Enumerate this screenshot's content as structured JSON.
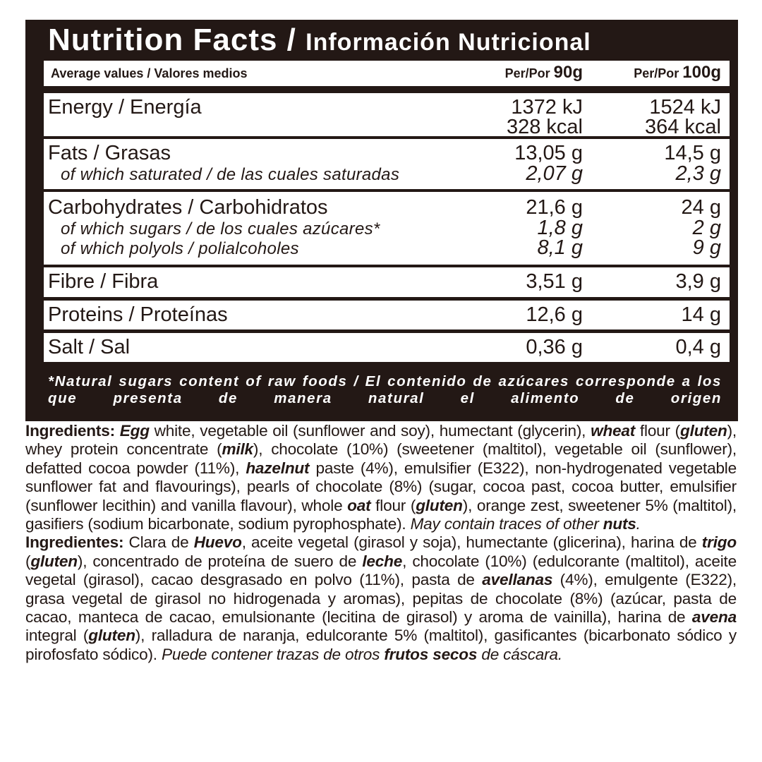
{
  "title": {
    "en": "Nutrition Facts",
    "sep": " / ",
    "es": "Información Nutricional"
  },
  "header": {
    "label": "Average values / Valores medios",
    "col1_prefix": "Per/Por ",
    "col1_amount": "90g",
    "col2_prefix": "Per/Por ",
    "col2_amount": "100g"
  },
  "rows": [
    {
      "label": "Energy / Energía",
      "v1": "1372 kJ",
      "v2": "1524 kJ",
      "v1b": "328 kcal",
      "v2b": "364 kcal"
    },
    {
      "label": "Fats / Grasas",
      "v1": "13,05 g",
      "v2": "14,5 g",
      "sub": [
        {
          "label": "of which saturated / de las cuales saturadas",
          "v1": "2,07 g",
          "v2": "2,3 g"
        }
      ]
    },
    {
      "label": "Carbohydrates / Carbohidratos",
      "v1": "21,6 g",
      "v2": "24 g",
      "sub": [
        {
          "label": "of which sugars / de los cuales azúcares*",
          "v1": "1,8 g",
          "v2": "2 g"
        },
        {
          "label": "of which polyols / polialcoholes",
          "v1": "8,1 g",
          "v2": "9 g"
        }
      ]
    },
    {
      "label": "Fibre / Fibra",
      "v1": "3,51 g",
      "v2": "3,9 g"
    },
    {
      "label": "Proteins / Proteínas",
      "v1": "12,6 g",
      "v2": "14 g"
    },
    {
      "label": "Salt / Sal",
      "v1": "0,36 g",
      "v2": "0,4 g"
    }
  ],
  "footnote": "*Natural sugars content of raw foods / El contenido de azúcares corresponde a los que presenta de manera natural el alimento de origen",
  "ingredients_en": [
    [
      "b",
      "Ingredients: "
    ],
    [
      "bi",
      "Egg"
    ],
    [
      "n",
      " white, vegetable oil (sunflower and soy), humectant (glycerin), "
    ],
    [
      "bi",
      "wheat"
    ],
    [
      "n",
      " flour ("
    ],
    [
      "bi",
      "gluten"
    ],
    [
      "n",
      "), whey protein concentrate ("
    ],
    [
      "bi",
      "milk"
    ],
    [
      "n",
      "), chocolate (10%) (sweetener (maltitol), vegetable oil (sunflower), defatted cocoa powder (11%), "
    ],
    [
      "bi",
      "hazelnut"
    ],
    [
      "n",
      " paste (4%), emulsifier (E322), non-hydrogenated vegetable sunflower fat and flavourings), pearls of chocolate (8%) (sugar, cocoa past, cocoa butter, emulsifier (sunflower lecithin) and vanilla flavour), whole "
    ],
    [
      "bi",
      "oat"
    ],
    [
      "n",
      " flour ("
    ],
    [
      "bi",
      "gluten"
    ],
    [
      "n",
      "), orange zest, sweetener 5% (maltitol), gasifiers (sodium bicarbonate, sodium pyrophosphate). "
    ],
    [
      "i",
      "May contain traces of other "
    ],
    [
      "bi",
      "nuts"
    ],
    [
      "i",
      "."
    ]
  ],
  "ingredients_es": [
    [
      "b",
      "Ingredientes: "
    ],
    [
      "n",
      "Clara de "
    ],
    [
      "bi",
      "Huevo"
    ],
    [
      "n",
      ", aceite vegetal (girasol y soja), humectante (glicerina), harina de "
    ],
    [
      "bi",
      "trigo"
    ],
    [
      "n",
      " ("
    ],
    [
      "bi",
      "gluten"
    ],
    [
      "n",
      "), concentrado de proteína de suero de "
    ],
    [
      "bi",
      "leche"
    ],
    [
      "n",
      ", chocolate (10%) (edulcorante (maltitol), aceite vegetal (girasol), cacao desgrasado en polvo (11%), pasta de "
    ],
    [
      "bi",
      "avellanas"
    ],
    [
      "n",
      " (4%), emulgente (E322), grasa vegetal de girasol no hidrogenada y aromas), pepitas de chocolate (8%) (azúcar, pasta de cacao, manteca de cacao, emulsionante (lecitina de girasol) y aroma de vainilla), harina de "
    ],
    [
      "bi",
      "avena"
    ],
    [
      "n",
      " integral ("
    ],
    [
      "bi",
      "gluten"
    ],
    [
      "n",
      "), ralladura de naranja, edulcorante 5% (maltitol), gasificantes (bicarbonato sódico y pirofosfato sódico). "
    ],
    [
      "i",
      "Puede contener trazas de otros "
    ],
    [
      "bi",
      "frutos secos"
    ],
    [
      "i",
      " de cáscara."
    ]
  ],
  "colors": {
    "brand_dark": "#231815",
    "background": "#ffffff"
  }
}
